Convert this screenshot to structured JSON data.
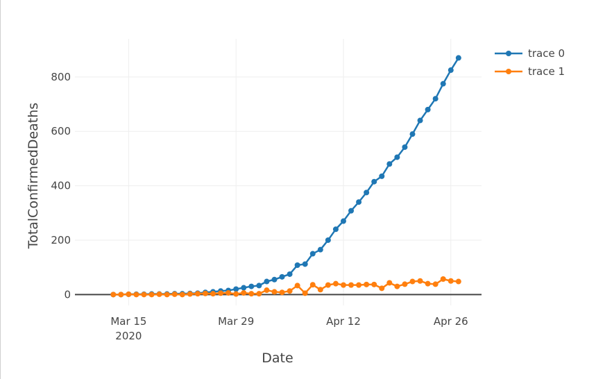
{
  "chart_data": {
    "type": "line",
    "xlabel": "Date",
    "ylabel": "TotalConfirmedDeaths",
    "x_ticks": [
      {
        "date": "2020-03-15",
        "label": "Mar 15",
        "sublabel": "2020"
      },
      {
        "date": "2020-03-29",
        "label": "Mar 29",
        "sublabel": ""
      },
      {
        "date": "2020-04-12",
        "label": "Apr 12",
        "sublabel": ""
      },
      {
        "date": "2020-04-26",
        "label": "Apr 26",
        "sublabel": ""
      }
    ],
    "y_ticks": [
      0,
      200,
      400,
      600,
      800
    ],
    "xlim": [
      "2020-03-08",
      "2020-04-30"
    ],
    "ylim": [
      -40,
      940
    ],
    "grid": true,
    "legend_position": "top-right",
    "x": [
      "2020-03-13",
      "2020-03-14",
      "2020-03-15",
      "2020-03-16",
      "2020-03-17",
      "2020-03-18",
      "2020-03-19",
      "2020-03-20",
      "2020-03-21",
      "2020-03-22",
      "2020-03-23",
      "2020-03-24",
      "2020-03-25",
      "2020-03-26",
      "2020-03-27",
      "2020-03-28",
      "2020-03-29",
      "2020-03-30",
      "2020-03-31",
      "2020-04-01",
      "2020-04-02",
      "2020-04-03",
      "2020-04-04",
      "2020-04-05",
      "2020-04-06",
      "2020-04-07",
      "2020-04-08",
      "2020-04-09",
      "2020-04-10",
      "2020-04-11",
      "2020-04-12",
      "2020-04-13",
      "2020-04-14",
      "2020-04-15",
      "2020-04-16",
      "2020-04-17",
      "2020-04-18",
      "2020-04-19",
      "2020-04-20",
      "2020-04-21",
      "2020-04-22",
      "2020-04-23",
      "2020-04-24",
      "2020-04-25",
      "2020-04-26",
      "2020-04-27"
    ],
    "series": [
      {
        "name": "trace 0",
        "color": "#1f77b4",
        "values": [
          0,
          0,
          1,
          1,
          1,
          2,
          2,
          2,
          3,
          3,
          4,
          5,
          8,
          10,
          13,
          15,
          20,
          25,
          30,
          33,
          48,
          55,
          65,
          75,
          108,
          112,
          150,
          165,
          200,
          240,
          270,
          308,
          340,
          375,
          415,
          435,
          480,
          505,
          542,
          590,
          640,
          680,
          720,
          775,
          825,
          870
        ]
      },
      {
        "name": "trace 1",
        "color": "#ff7f0e",
        "values": [
          0,
          0,
          1,
          0,
          0,
          0,
          1,
          0,
          1,
          0,
          2,
          3,
          4,
          3,
          5,
          6,
          2,
          6,
          3,
          3,
          16,
          10,
          8,
          13,
          33,
          5,
          36,
          18,
          35,
          40,
          35,
          35,
          35,
          37,
          37,
          23,
          43,
          30,
          38,
          48,
          50,
          40,
          38,
          57,
          50,
          48
        ]
      }
    ]
  }
}
